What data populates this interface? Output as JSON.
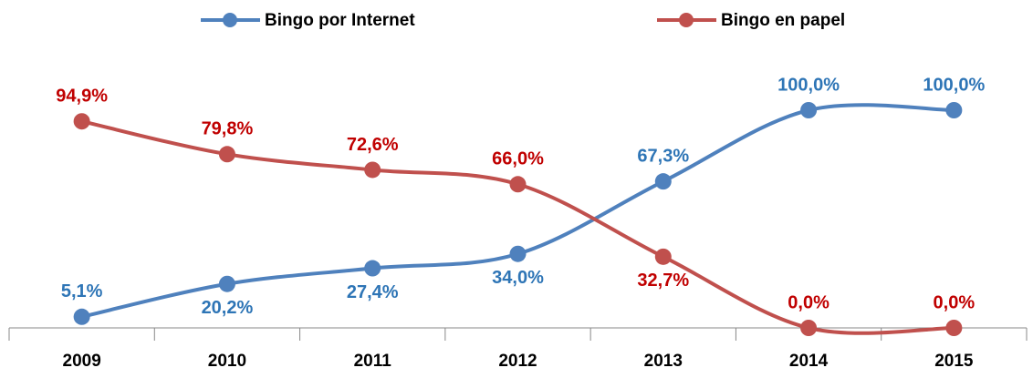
{
  "chart_data": {
    "type": "line",
    "categories": [
      "2009",
      "2010",
      "2011",
      "2012",
      "2013",
      "2014",
      "2015"
    ],
    "series": [
      {
        "name": "Bingo por Internet",
        "color": "#4f81bd",
        "label_color": "#2e75b6",
        "values": [
          5.1,
          20.2,
          27.4,
          34.0,
          67.3,
          100.0,
          100.0
        ],
        "value_labels": [
          "5,1%",
          "20,2%",
          "27,4%",
          "34,0%",
          "67,3%",
          "100,0%",
          "100,0%"
        ]
      },
      {
        "name": "Bingo en papel",
        "color": "#c0504d",
        "label_color": "#c00000",
        "values": [
          94.9,
          79.8,
          72.6,
          66.0,
          32.7,
          0.0,
          0.0
        ],
        "value_labels": [
          "94,9%",
          "79,8%",
          "72,6%",
          "66,0%",
          "32,7%",
          "0,0%",
          "0,0%"
        ]
      }
    ],
    "ylim": [
      0,
      100
    ],
    "legend": "top",
    "smooth": true
  }
}
